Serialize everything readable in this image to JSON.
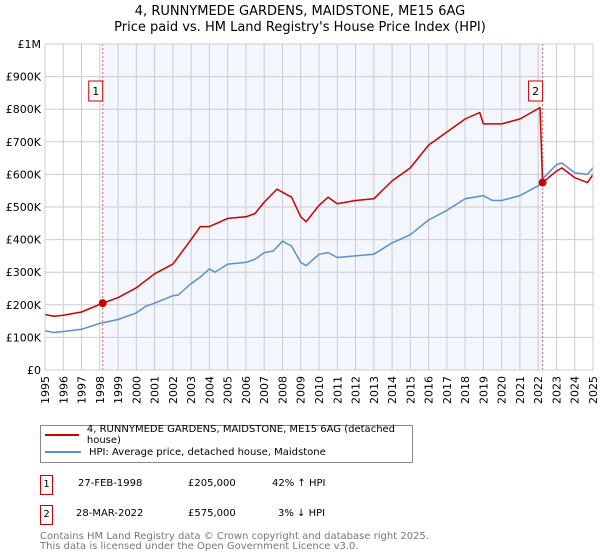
{
  "chart_data": {
    "type": "line",
    "title": "4, RUNNYMEDE GARDENS, MAIDSTONE, ME15 6AG",
    "subtitle": "Price paid vs. HM Land Registry's House Price Index (HPI)",
    "xlim": [
      1995,
      2025
    ],
    "ylim": [
      0,
      1000000
    ],
    "x_ticks": [
      "1995",
      "1996",
      "1997",
      "1998",
      "1999",
      "2000",
      "2001",
      "2002",
      "2003",
      "2004",
      "2005",
      "2006",
      "2007",
      "2008",
      "2009",
      "2010",
      "2011",
      "2012",
      "2013",
      "2014",
      "2015",
      "2016",
      "2017",
      "2018",
      "2019",
      "2020",
      "2021",
      "2022",
      "2023",
      "2024",
      "2025"
    ],
    "y_ticks": [
      {
        "value": 0,
        "label": "£0"
      },
      {
        "value": 100000,
        "label": "£100K"
      },
      {
        "value": 200000,
        "label": "£200K"
      },
      {
        "value": 300000,
        "label": "£300K"
      },
      {
        "value": 400000,
        "label": "£400K"
      },
      {
        "value": 500000,
        "label": "£500K"
      },
      {
        "value": 600000,
        "label": "£600K"
      },
      {
        "value": 700000,
        "label": "£700K"
      },
      {
        "value": 800000,
        "label": "£800K"
      },
      {
        "value": 900000,
        "label": "£900K"
      },
      {
        "value": 1000000,
        "label": "£1M"
      }
    ],
    "grid": true,
    "shaded_range": [
      1998.16,
      2022.24
    ],
    "series": [
      {
        "name": "4, RUNNYMEDE GARDENS, MAIDSTONE, ME15 6AG (detached house)",
        "color": "#cc0000",
        "x": [
          1995,
          1995.5,
          1996,
          1997,
          1998.16,
          1999,
          2000,
          2001,
          2002,
          2003,
          2003.5,
          2004,
          2005,
          2006,
          2006.5,
          2007,
          2007.7,
          2008,
          2008.5,
          2009,
          2009.3,
          2010,
          2010.5,
          2011,
          2012,
          2013,
          2014,
          2015,
          2016,
          2017,
          2018,
          2018.8,
          2019,
          2020,
          2021,
          2022.1,
          2022.24,
          2023,
          2023.3,
          2024,
          2024.7,
          2025
        ],
        "y": [
          170000,
          165000,
          168000,
          178000,
          205000,
          222000,
          252000,
          295000,
          325000,
          400000,
          440000,
          440000,
          465000,
          470000,
          480000,
          515000,
          555000,
          545000,
          530000,
          470000,
          455000,
          505000,
          530000,
          510000,
          520000,
          525000,
          580000,
          620000,
          690000,
          730000,
          770000,
          790000,
          755000,
          755000,
          770000,
          805000,
          575000,
          610000,
          620000,
          590000,
          575000,
          600000
        ]
      },
      {
        "name": "HPI: Average price, detached house, Maidstone",
        "color": "#5b8fd0",
        "x": [
          1995,
          1995.5,
          1996,
          1997,
          1998,
          1999,
          2000,
          2000.5,
          2001,
          2002,
          2002.3,
          2003,
          2003.5,
          2004,
          2004.3,
          2005,
          2006,
          2006.5,
          2007,
          2007.5,
          2008,
          2008.5,
          2009,
          2009.3,
          2010,
          2010.5,
          2011,
          2012,
          2013,
          2014,
          2015,
          2016,
          2017,
          2018,
          2019,
          2019.5,
          2020,
          2021,
          2022,
          2022.3,
          2023,
          2023.3,
          2024,
          2024.7,
          2025
        ],
        "y": [
          120000,
          115000,
          118000,
          125000,
          143000,
          155000,
          175000,
          195000,
          205000,
          228000,
          230000,
          265000,
          285000,
          310000,
          300000,
          325000,
          330000,
          340000,
          360000,
          365000,
          395000,
          380000,
          330000,
          320000,
          355000,
          360000,
          345000,
          350000,
          355000,
          390000,
          415000,
          460000,
          490000,
          525000,
          535000,
          520000,
          520000,
          535000,
          565000,
          590000,
          630000,
          635000,
          605000,
          600000,
          620000
        ]
      }
    ],
    "annotations": [
      {
        "label": "1",
        "x": 1998.16,
        "y": 205000
      },
      {
        "label": "2",
        "x": 2022.24,
        "y": 575000
      }
    ],
    "legend_position": "bottom"
  },
  "transactions": [
    {
      "num": "1",
      "date": "27-FEB-1998",
      "price": "£205,000",
      "hpi": "42% ↑ HPI"
    },
    {
      "num": "2",
      "date": "28-MAR-2022",
      "price": "£575,000",
      "hpi": "3% ↓ HPI"
    }
  ],
  "footer": {
    "line1": "Contains HM Land Registry data © Crown copyright and database right 2025.",
    "line2": "This data is licensed under the Open Government Licence v3.0."
  }
}
